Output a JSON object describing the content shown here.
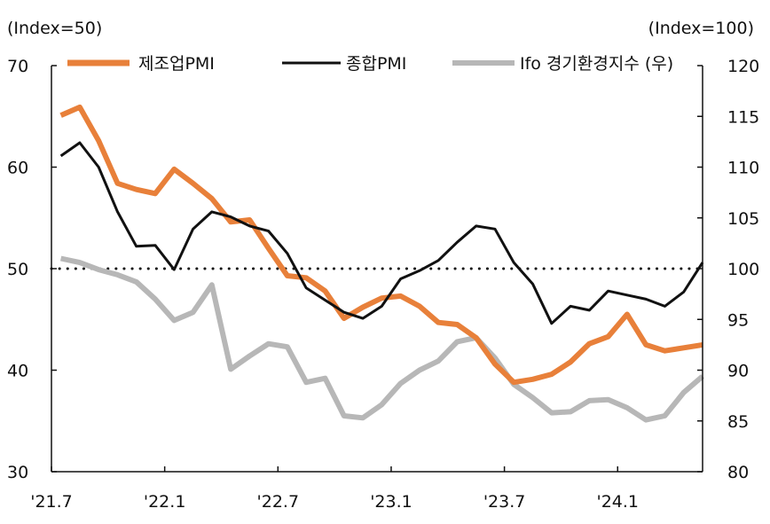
{
  "chart_data": {
    "type": "line",
    "left_axis_label": "(Index=50)",
    "right_axis_label": "(Index=100)",
    "ylim_left": [
      30,
      70
    ],
    "yticks_left": [
      "70",
      "60",
      "50",
      "40",
      "30"
    ],
    "ylim_right": [
      80,
      120
    ],
    "yticks_right": [
      "120",
      "115",
      "110",
      "105",
      "100",
      "95",
      "90",
      "85",
      "80"
    ],
    "x_tick_labels": [
      "'21.7",
      "'22.1",
      "'22.7",
      "'23.1",
      "'23.7",
      "'24.1"
    ],
    "reference_line": {
      "value": 50,
      "axis": "left",
      "style": "dotted"
    },
    "legend_position": "top",
    "x": [
      "2021-07",
      "2021-08",
      "2021-09",
      "2021-10",
      "2021-11",
      "2021-12",
      "2022-01",
      "2022-02",
      "2022-03",
      "2022-04",
      "2022-05",
      "2022-06",
      "2022-07",
      "2022-08",
      "2022-09",
      "2022-10",
      "2022-11",
      "2022-12",
      "2023-01",
      "2023-02",
      "2023-03",
      "2023-04",
      "2023-05",
      "2023-06",
      "2023-07",
      "2023-08",
      "2023-09",
      "2023-10",
      "2023-11",
      "2023-12",
      "2024-01",
      "2024-02",
      "2024-03",
      "2024-04",
      "2024-05"
    ],
    "series": [
      {
        "name": "제조업PMI",
        "axis": "left",
        "color": "#E8803A",
        "values": [
          65.1,
          65.9,
          62.6,
          58.4,
          57.8,
          57.4,
          59.8,
          58.4,
          56.9,
          54.6,
          54.8,
          52.0,
          49.3,
          49.1,
          47.8,
          45.1,
          46.2,
          47.1,
          47.3,
          46.3,
          44.7,
          44.5,
          43.2,
          40.6,
          38.8,
          39.1,
          39.6,
          40.8,
          42.6,
          43.3,
          45.5,
          42.5,
          41.9,
          42.2,
          42.5
        ]
      },
      {
        "name": "종합PMI",
        "axis": "left",
        "color": "#111111",
        "values": [
          61.1,
          62.4,
          60.0,
          55.6,
          52.2,
          52.3,
          49.9,
          53.9,
          55.6,
          55.1,
          54.2,
          53.7,
          51.5,
          48.1,
          46.9,
          45.7,
          45.1,
          46.3,
          49.0,
          49.8,
          50.8,
          52.6,
          54.2,
          53.9,
          50.6,
          48.5,
          44.6,
          46.3,
          45.9,
          47.8,
          47.4,
          47.0,
          46.3,
          47.7,
          50.6
        ]
      },
      {
        "name": "Ifo 경기환경지수 (우)",
        "axis": "right",
        "color": "#B7B7B7",
        "values": [
          101.0,
          100.6,
          99.9,
          99.4,
          98.7,
          97.0,
          94.9,
          95.7,
          98.4,
          90.1,
          91.4,
          92.6,
          92.3,
          88.8,
          89.2,
          85.5,
          85.3,
          86.6,
          88.7,
          90.0,
          90.9,
          92.8,
          93.2,
          91.2,
          88.6,
          87.3,
          85.8,
          85.9,
          87.0,
          87.1,
          86.3,
          85.1,
          85.5,
          87.8,
          89.4
        ]
      }
    ]
  }
}
